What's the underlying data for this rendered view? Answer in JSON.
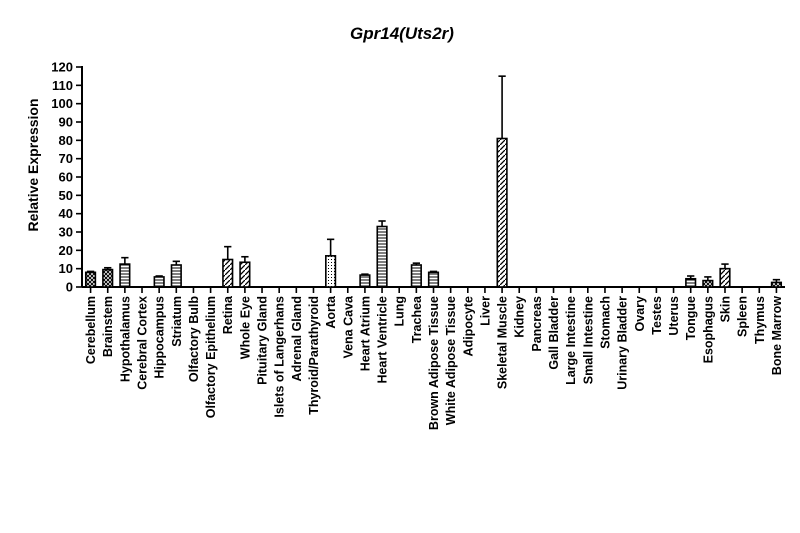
{
  "chart_data": {
    "type": "bar",
    "title": "Gpr14(Uts2r)",
    "xlabel": "",
    "ylabel": "Relative Expression",
    "ylim": [
      0,
      120
    ],
    "ytick_step": 10,
    "grid": false,
    "legend": "none",
    "bar_fill": "#ffffff",
    "bar_stroke": "#000000",
    "categories": [
      "Cerebellum",
      "Brainstem",
      "Hypothalamus",
      "Cerebral Cortex",
      "Hippocampus",
      "Striatum",
      "Olfactory Bulb",
      "Olfactory Epithelium",
      "Retina",
      "Whole Eye",
      "Pituitary Gland",
      "Islets of Langerhans",
      "Adrenal Gland",
      "Thyroid/Parathyroid",
      "Aorta",
      "Vena Cava",
      "Heart Atrium",
      "Heart Ventricle",
      "Lung",
      "Trachea",
      "Brown Adipose Tissue",
      "White Adipose Tissue",
      "Adipocyte",
      "Liver",
      "Skeletal Muscle",
      "Kidney",
      "Pancreas",
      "Gall Bladder",
      "Large Intestine",
      "Small Intestine",
      "Stomach",
      "Urinary Bladder",
      "Ovary",
      "Testes",
      "Uterus",
      "Tongue",
      "Esophagus",
      "Skin",
      "Spleen",
      "Thymus",
      "Bone Marrow"
    ],
    "values": [
      8,
      9.5,
      12.5,
      0,
      5.5,
      12,
      0,
      0,
      15,
      13.5,
      0,
      0,
      0,
      0,
      17,
      0,
      6.5,
      33,
      0,
      12,
      8,
      0,
      0,
      0,
      81,
      0,
      0,
      0,
      0,
      0,
      0,
      0,
      0,
      0,
      0,
      4.5,
      3.5,
      10,
      0,
      0,
      2.5
    ],
    "errors": [
      0.5,
      1,
      3.5,
      0,
      0.5,
      2,
      0,
      0,
      7,
      3,
      0,
      0,
      0,
      0,
      9,
      0,
      0.5,
      3,
      0,
      1,
      0.5,
      0,
      0,
      0,
      34,
      0,
      0,
      0,
      0,
      0,
      0,
      0,
      0,
      0,
      0,
      1.5,
      2,
      2.5,
      0,
      0,
      1.5
    ],
    "patterns": [
      "crosshatch",
      "crosshatch",
      "hlines",
      "none",
      "hlines",
      "hlines",
      "none",
      "none",
      "diag",
      "diag",
      "none",
      "none",
      "none",
      "none",
      "dots",
      "none",
      "hlines",
      "hlines",
      "none",
      "hlines",
      "hlines",
      "none",
      "none",
      "none",
      "diag",
      "none",
      "none",
      "none",
      "none",
      "none",
      "none",
      "none",
      "none",
      "none",
      "none",
      "hlines",
      "crosshatch",
      "diag",
      "none",
      "none",
      "crosshatch"
    ]
  }
}
